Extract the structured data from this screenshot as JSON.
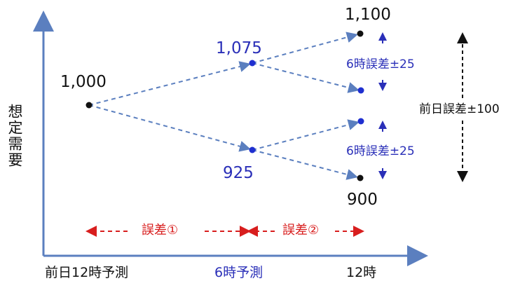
{
  "diagram": {
    "y_axis_label": "想定需要",
    "x_axis_labels": {
      "start": "前日12時予測",
      "middle": "6時予測",
      "end": "12時"
    },
    "values": {
      "start": "1,000",
      "mid_high": "1,075",
      "mid_low": "925",
      "end_high": "1,100",
      "end_low": "900"
    },
    "error_labels": {
      "six_hour_upper": "6時誤差±25",
      "six_hour_lower": "6時誤差±25",
      "previous_day": "前日誤差±100",
      "error_1": "誤差①",
      "error_2": "誤差②"
    },
    "colors": {
      "axis": "#5b7fbf",
      "path": "#5b7fbf",
      "blue_text": "#2a2fb8",
      "black_text": "#111111",
      "red": "#d81e1e"
    }
  }
}
